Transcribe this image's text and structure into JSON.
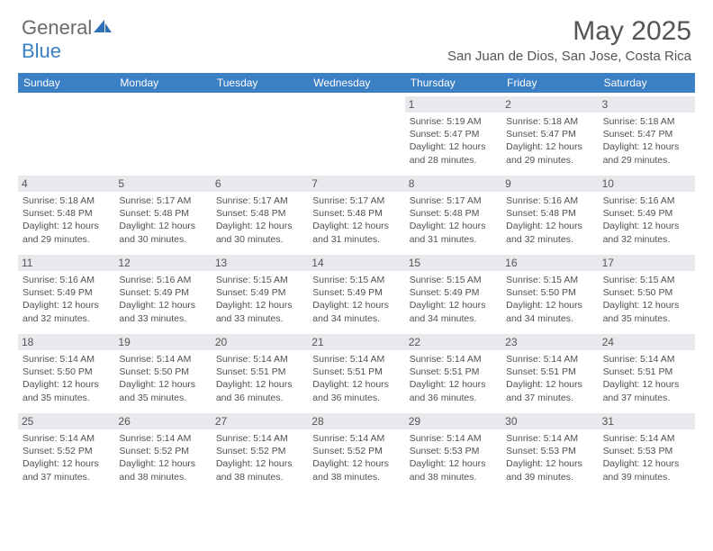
{
  "brand": {
    "name_part1": "General",
    "name_part2": "Blue"
  },
  "title": "May 2025",
  "location": "San Juan de Dios, San Jose, Costa Rica",
  "colors": {
    "header_bg": "#3b7fc4",
    "daynum_bg": "#e7e9ec",
    "text": "#555555",
    "body_text": "#515151"
  },
  "weekdays": [
    "Sunday",
    "Monday",
    "Tuesday",
    "Wednesday",
    "Thursday",
    "Friday",
    "Saturday"
  ],
  "layout": {
    "columns": 7,
    "rows": 5,
    "leading_blanks": 4
  },
  "days": [
    {
      "n": "1",
      "sunrise": "5:19 AM",
      "sunset": "5:47 PM",
      "dl": "12 hours and 28 minutes."
    },
    {
      "n": "2",
      "sunrise": "5:18 AM",
      "sunset": "5:47 PM",
      "dl": "12 hours and 29 minutes."
    },
    {
      "n": "3",
      "sunrise": "5:18 AM",
      "sunset": "5:47 PM",
      "dl": "12 hours and 29 minutes."
    },
    {
      "n": "4",
      "sunrise": "5:18 AM",
      "sunset": "5:48 PM",
      "dl": "12 hours and 29 minutes."
    },
    {
      "n": "5",
      "sunrise": "5:17 AM",
      "sunset": "5:48 PM",
      "dl": "12 hours and 30 minutes."
    },
    {
      "n": "6",
      "sunrise": "5:17 AM",
      "sunset": "5:48 PM",
      "dl": "12 hours and 30 minutes."
    },
    {
      "n": "7",
      "sunrise": "5:17 AM",
      "sunset": "5:48 PM",
      "dl": "12 hours and 31 minutes."
    },
    {
      "n": "8",
      "sunrise": "5:17 AM",
      "sunset": "5:48 PM",
      "dl": "12 hours and 31 minutes."
    },
    {
      "n": "9",
      "sunrise": "5:16 AM",
      "sunset": "5:48 PM",
      "dl": "12 hours and 32 minutes."
    },
    {
      "n": "10",
      "sunrise": "5:16 AM",
      "sunset": "5:49 PM",
      "dl": "12 hours and 32 minutes."
    },
    {
      "n": "11",
      "sunrise": "5:16 AM",
      "sunset": "5:49 PM",
      "dl": "12 hours and 32 minutes."
    },
    {
      "n": "12",
      "sunrise": "5:16 AM",
      "sunset": "5:49 PM",
      "dl": "12 hours and 33 minutes."
    },
    {
      "n": "13",
      "sunrise": "5:15 AM",
      "sunset": "5:49 PM",
      "dl": "12 hours and 33 minutes."
    },
    {
      "n": "14",
      "sunrise": "5:15 AM",
      "sunset": "5:49 PM",
      "dl": "12 hours and 34 minutes."
    },
    {
      "n": "15",
      "sunrise": "5:15 AM",
      "sunset": "5:49 PM",
      "dl": "12 hours and 34 minutes."
    },
    {
      "n": "16",
      "sunrise": "5:15 AM",
      "sunset": "5:50 PM",
      "dl": "12 hours and 34 minutes."
    },
    {
      "n": "17",
      "sunrise": "5:15 AM",
      "sunset": "5:50 PM",
      "dl": "12 hours and 35 minutes."
    },
    {
      "n": "18",
      "sunrise": "5:14 AM",
      "sunset": "5:50 PM",
      "dl": "12 hours and 35 minutes."
    },
    {
      "n": "19",
      "sunrise": "5:14 AM",
      "sunset": "5:50 PM",
      "dl": "12 hours and 35 minutes."
    },
    {
      "n": "20",
      "sunrise": "5:14 AM",
      "sunset": "5:51 PM",
      "dl": "12 hours and 36 minutes."
    },
    {
      "n": "21",
      "sunrise": "5:14 AM",
      "sunset": "5:51 PM",
      "dl": "12 hours and 36 minutes."
    },
    {
      "n": "22",
      "sunrise": "5:14 AM",
      "sunset": "5:51 PM",
      "dl": "12 hours and 36 minutes."
    },
    {
      "n": "23",
      "sunrise": "5:14 AM",
      "sunset": "5:51 PM",
      "dl": "12 hours and 37 minutes."
    },
    {
      "n": "24",
      "sunrise": "5:14 AM",
      "sunset": "5:51 PM",
      "dl": "12 hours and 37 minutes."
    },
    {
      "n": "25",
      "sunrise": "5:14 AM",
      "sunset": "5:52 PM",
      "dl": "12 hours and 37 minutes."
    },
    {
      "n": "26",
      "sunrise": "5:14 AM",
      "sunset": "5:52 PM",
      "dl": "12 hours and 38 minutes."
    },
    {
      "n": "27",
      "sunrise": "5:14 AM",
      "sunset": "5:52 PM",
      "dl": "12 hours and 38 minutes."
    },
    {
      "n": "28",
      "sunrise": "5:14 AM",
      "sunset": "5:52 PM",
      "dl": "12 hours and 38 minutes."
    },
    {
      "n": "29",
      "sunrise": "5:14 AM",
      "sunset": "5:53 PM",
      "dl": "12 hours and 38 minutes."
    },
    {
      "n": "30",
      "sunrise": "5:14 AM",
      "sunset": "5:53 PM",
      "dl": "12 hours and 39 minutes."
    },
    {
      "n": "31",
      "sunrise": "5:14 AM",
      "sunset": "5:53 PM",
      "dl": "12 hours and 39 minutes."
    }
  ],
  "labels": {
    "sunrise": "Sunrise:",
    "sunset": "Sunset:",
    "daylight": "Daylight:"
  }
}
